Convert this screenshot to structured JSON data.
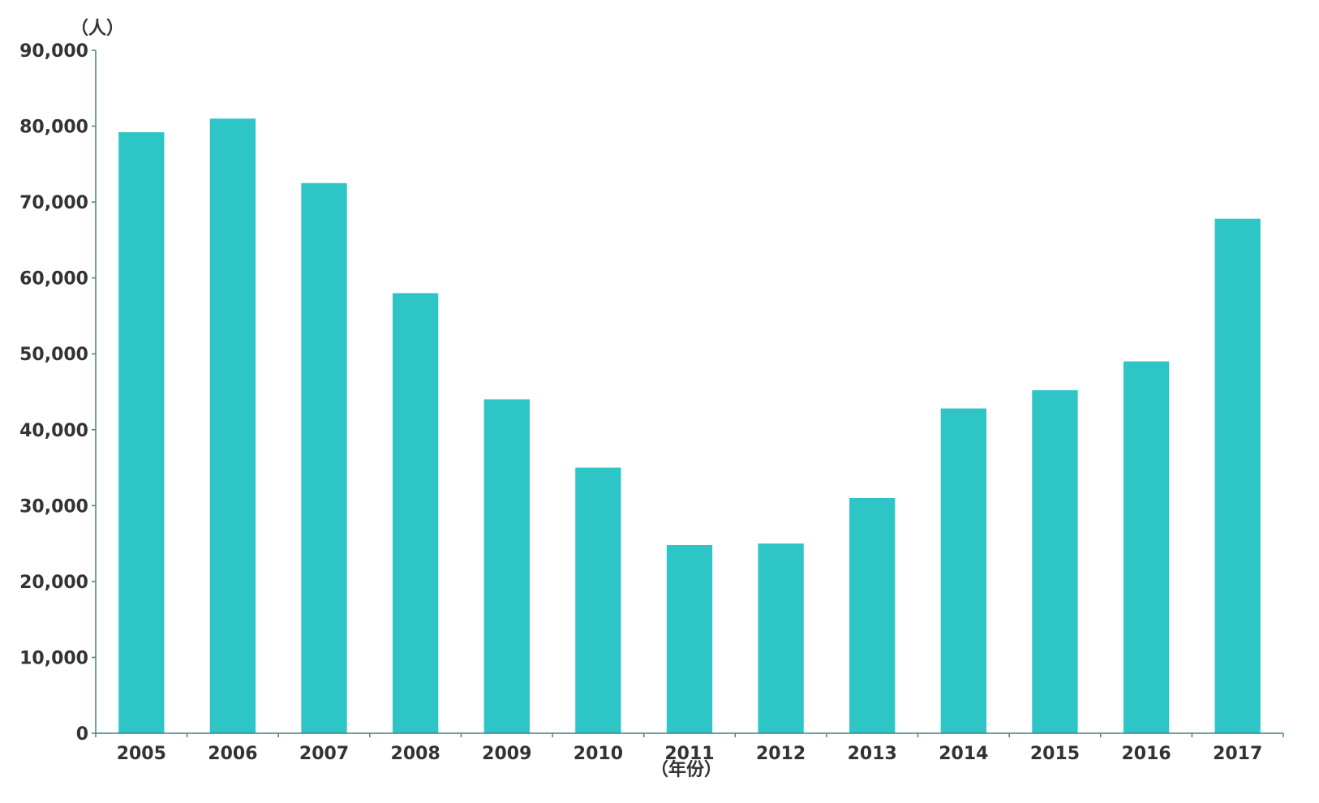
{
  "chart_data": {
    "type": "bar",
    "title": "",
    "xlabel": "（年份）",
    "ylabel": "（人）",
    "categories": [
      "2005",
      "2006",
      "2007",
      "2008",
      "2009",
      "2010",
      "2011",
      "2012",
      "2013",
      "2014",
      "2015",
      "2016",
      "2017"
    ],
    "values": [
      79200,
      81000,
      72500,
      58000,
      44000,
      35000,
      24800,
      25000,
      31000,
      42800,
      45200,
      49000,
      67800
    ],
    "ylim": [
      0,
      90000
    ],
    "yticks": [
      0,
      10000,
      20000,
      30000,
      40000,
      50000,
      60000,
      70000,
      80000,
      90000
    ],
    "ytick_labels": [
      "0",
      "10,000",
      "20,000",
      "30,000",
      "40,000",
      "50,000",
      "60,000",
      "70,000",
      "80,000",
      "90,000"
    ],
    "grid": false,
    "legend": "none",
    "colors": {
      "bar": "#2EC5C7",
      "axis": "#4A7F86",
      "text": "#333333"
    }
  }
}
